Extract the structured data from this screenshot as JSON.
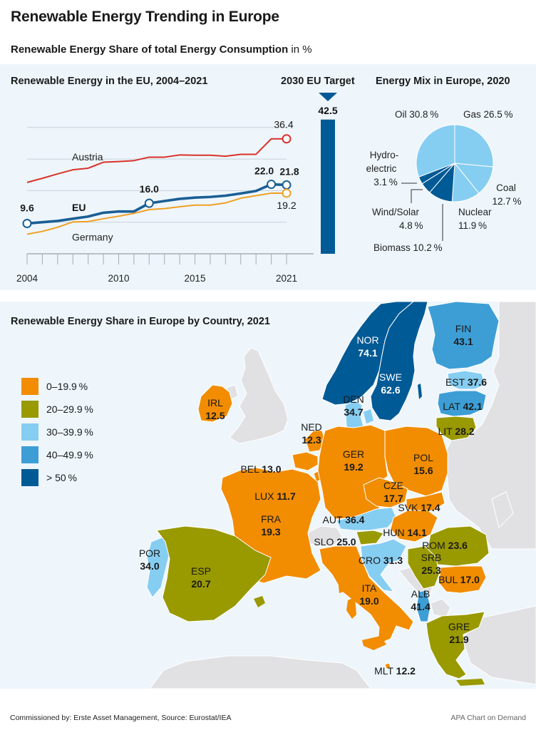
{
  "header": {
    "title": "Renewable Energy Trending in Europe",
    "subtitle_bold": "Renewable Energy Share of total Energy Consumption",
    "subtitle_unit": " in %"
  },
  "line_panel": {
    "title": "Renewable Energy in the EU, 2004–2021",
    "target_title": "2030 EU Target"
  },
  "pie_panel": {
    "title": "Energy Mix in Europe, 2020"
  },
  "map_panel": {
    "title": "Renewable Energy Share in Europe by Country, 2021"
  },
  "legend": [
    {
      "label": "0–19.9 %",
      "color": "#f28c00"
    },
    {
      "label": "20–29.9 %",
      "color": "#999900"
    },
    {
      "label": "30–39.9 %",
      "color": "#86cdf2"
    },
    {
      "label": "40–49.9 %",
      "color": "#3d9ed6"
    },
    {
      "label": "> 50 %",
      "color": "#005a96"
    }
  ],
  "footer": {
    "source": "Commissioned by: Erste Asset Management, Source: Eurostat/IEA",
    "credit": "APA Chart on Demand"
  },
  "chart_data": [
    {
      "type": "line",
      "title": "Renewable Energy in the EU, 2004–2021",
      "xlabel": "",
      "ylabel": "%",
      "x": [
        2004,
        2005,
        2006,
        2007,
        2008,
        2009,
        2010,
        2011,
        2012,
        2013,
        2014,
        2015,
        2016,
        2017,
        2018,
        2019,
        2020,
        2021
      ],
      "xticks": [
        2004,
        2010,
        2015,
        2021
      ],
      "ylim": [
        0,
        45
      ],
      "gridlines": [
        10,
        20,
        30,
        40
      ],
      "grid": true,
      "series": [
        {
          "name": "Austria",
          "color": "#d9322a",
          "values": [
            22.6,
            23.9,
            25.3,
            26.6,
            27.1,
            29.0,
            29.2,
            29.5,
            30.6,
            30.6,
            31.3,
            31.2,
            31.2,
            30.9,
            31.5,
            31.5,
            36.4,
            36.4
          ],
          "labels": [
            {
              "x": 2021,
              "text": "36.4"
            }
          ],
          "series_label": "Austria"
        },
        {
          "name": "EU",
          "color": "#1a5e94",
          "values": [
            9.6,
            10.0,
            10.4,
            11.1,
            11.8,
            13.0,
            13.4,
            13.4,
            16.0,
            16.7,
            17.4,
            17.8,
            18.0,
            18.4,
            19.1,
            19.9,
            22.0,
            21.8
          ],
          "labels": [
            {
              "x": 2004,
              "text": "9.6"
            },
            {
              "x": 2012,
              "text": "16.0"
            },
            {
              "x": 2020,
              "text": "22.0"
            },
            {
              "x": 2021,
              "text": "21.8"
            }
          ],
          "series_label": "EU"
        },
        {
          "name": "Germany",
          "color": "#f0a023",
          "values": [
            6.2,
            7.1,
            8.4,
            10.1,
            10.2,
            11.1,
            11.9,
            12.8,
            14.0,
            14.3,
            14.9,
            15.4,
            15.4,
            16.1,
            17.6,
            18.4,
            19.2,
            19.2
          ],
          "labels": [
            {
              "x": 2021,
              "text": "19.2"
            }
          ],
          "series_label": "Germany"
        }
      ]
    },
    {
      "type": "bar",
      "title": "2030 EU Target",
      "categories": [
        "2030 EU Target"
      ],
      "values": [
        42.5
      ],
      "labels": [
        "42.5"
      ],
      "color": "#005a96"
    },
    {
      "type": "pie",
      "title": "Energy Mix in Europe, 2020",
      "start": "12 o'clock, clockwise",
      "slices": [
        {
          "name": "Gas",
          "value": 26.5,
          "label": "Gas 26.5 %",
          "color": "#86cdf2"
        },
        {
          "name": "Coal",
          "value": 12.7,
          "label": "Coal 12.7 %",
          "color": "#86cdf2"
        },
        {
          "name": "Nuclear",
          "value": 11.9,
          "label": "Nuclear 11.9 %",
          "color": "#86cdf2"
        },
        {
          "name": "Biomass",
          "value": 10.2,
          "label": "Biomass 10.2 %",
          "color": "#005a96"
        },
        {
          "name": "Wind/Solar",
          "value": 4.8,
          "label": "Wind/Solar 4.8 %",
          "color": "#005a96"
        },
        {
          "name": "Hydroelectric",
          "value": 3.1,
          "label": "Hydro-electric 3.1 %",
          "color": "#005a96"
        },
        {
          "name": "Oil",
          "value": 30.8,
          "label": "Oil 30.8 %",
          "color": "#86cdf2"
        }
      ]
    },
    {
      "type": "choropleth",
      "title": "Renewable Energy Share in Europe by Country, 2021",
      "unit": "%",
      "countries": [
        {
          "code": "NOR",
          "value": 74.1
        },
        {
          "code": "SWE",
          "value": 62.6
        },
        {
          "code": "FIN",
          "value": 43.1
        },
        {
          "code": "EST",
          "value": 37.6
        },
        {
          "code": "LAT",
          "value": 42.1
        },
        {
          "code": "LIT",
          "value": 28.2
        },
        {
          "code": "DEN",
          "value": 34.7
        },
        {
          "code": "IRL",
          "value": 12.5
        },
        {
          "code": "NED",
          "value": 12.3
        },
        {
          "code": "BEL",
          "value": 13.0
        },
        {
          "code": "LUX",
          "value": 11.7
        },
        {
          "code": "GER",
          "value": 19.2
        },
        {
          "code": "POL",
          "value": 15.6
        },
        {
          "code": "CZE",
          "value": 17.7
        },
        {
          "code": "SVK",
          "value": 17.4
        },
        {
          "code": "AUT",
          "value": 36.4
        },
        {
          "code": "HUN",
          "value": 14.1
        },
        {
          "code": "FRA",
          "value": 19.3
        },
        {
          "code": "SLO",
          "value": 25.0
        },
        {
          "code": "CRO",
          "value": 31.3
        },
        {
          "code": "ROM",
          "value": 23.6
        },
        {
          "code": "SRB",
          "value": 25.3
        },
        {
          "code": "BUL",
          "value": 17.0
        },
        {
          "code": "POR",
          "value": 34.0
        },
        {
          "code": "ESP",
          "value": 20.7
        },
        {
          "code": "ITA",
          "value": 19.0
        },
        {
          "code": "ALB",
          "value": 41.4
        },
        {
          "code": "GRE",
          "value": 21.9
        },
        {
          "code": "MLT",
          "value": 12.2
        }
      ]
    }
  ]
}
